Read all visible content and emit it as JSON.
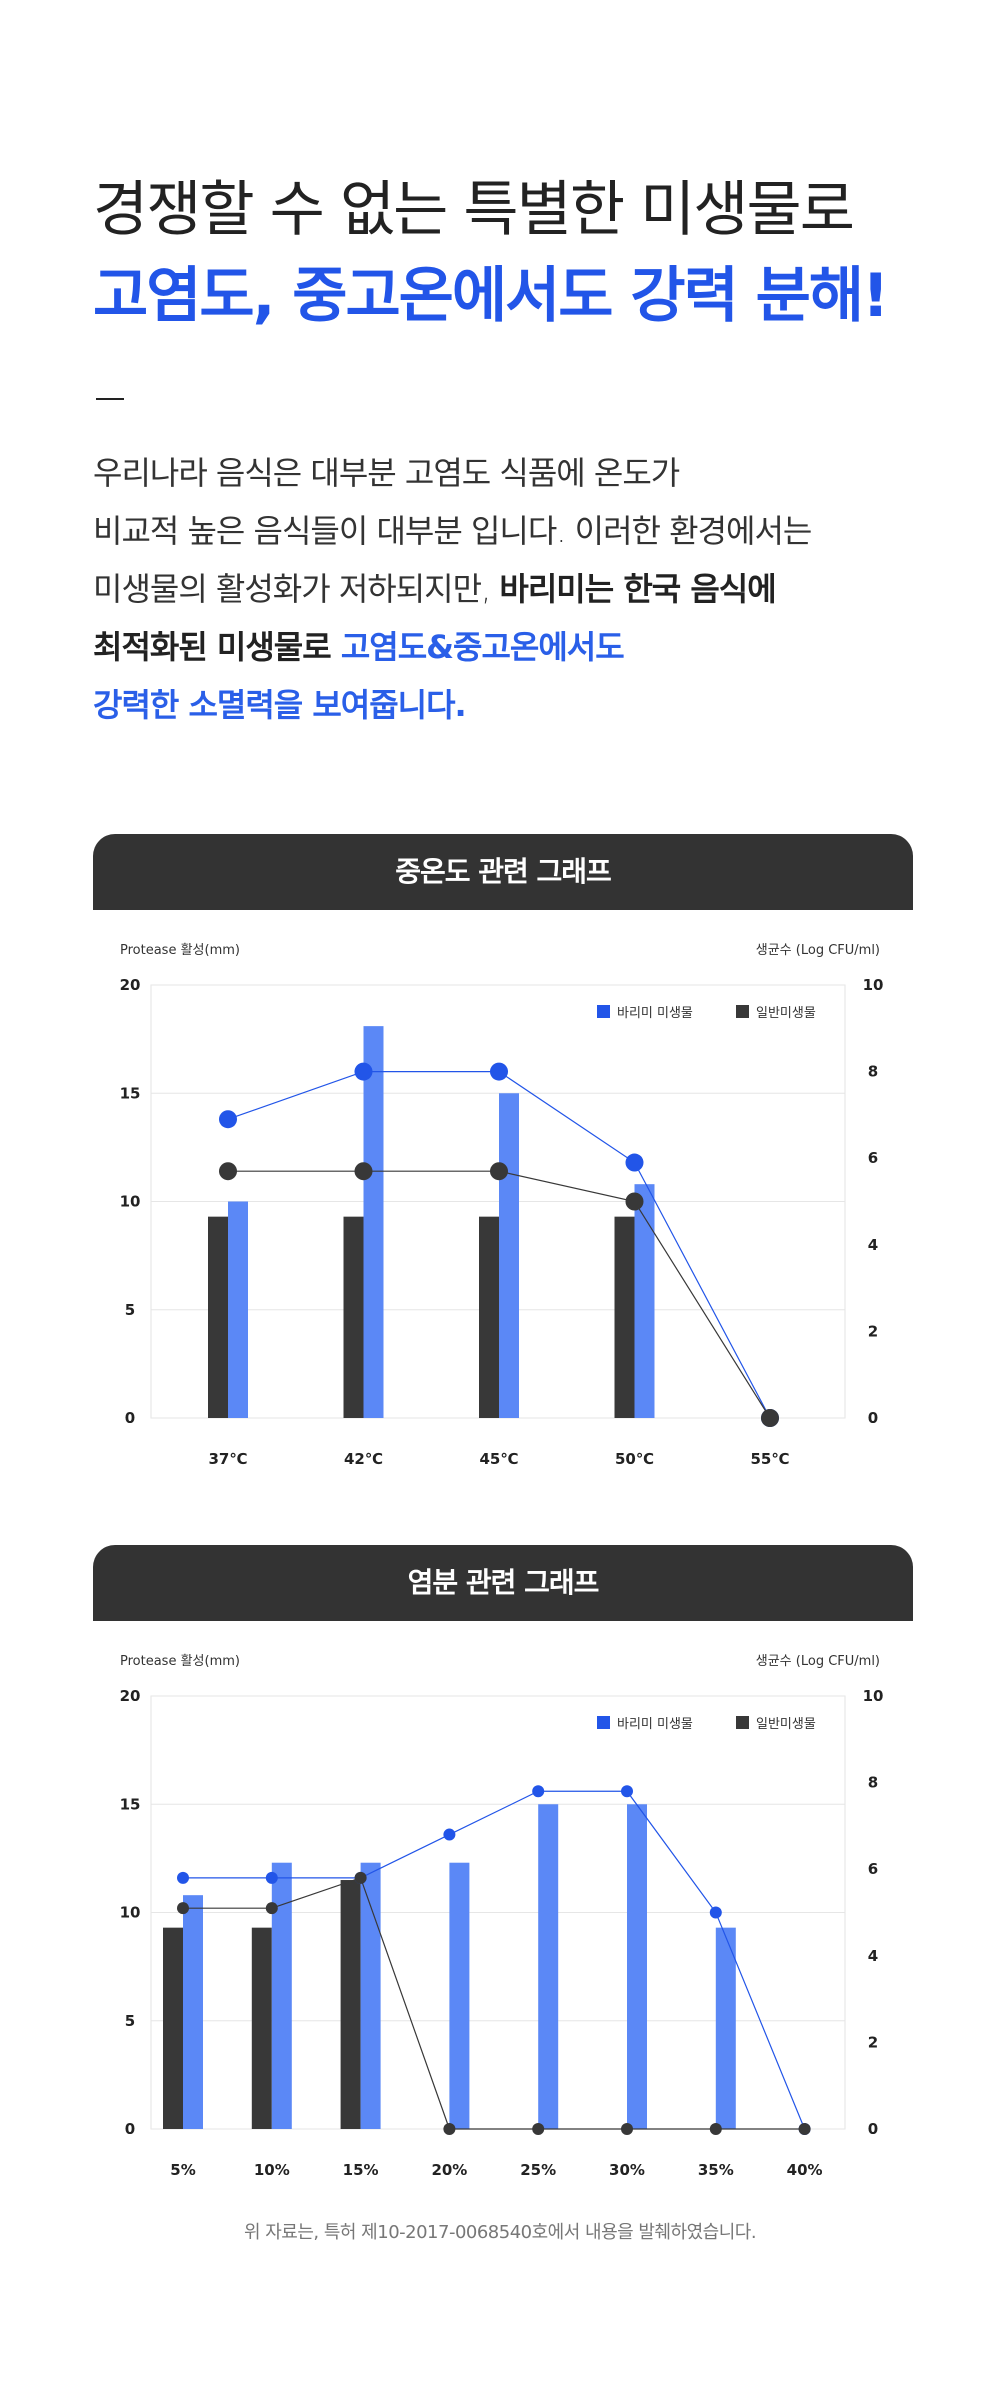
{
  "headline": {
    "line1": "경쟁할 수 없는 특별한 미생물로",
    "line2": "고염도, 중고온에서도 강력 분해!"
  },
  "body": {
    "line1": "우리나라 음식은 대부분 고염도 식품에 온도가",
    "line2": "비교적 높은 음식들이 대부분 입니다. 이러한 환경에서는",
    "line3_plain": "미생물의 활성화가 저하되지만, ",
    "line3_bold": "바리미는 한국 음식에",
    "line4_bold": "최적화된 미생물로 ",
    "line4_blue": "고염도&중고온에서도",
    "line5_blue": "강력한 소멸력을 보여줍니다."
  },
  "colors": {
    "accent_blue": "#2255e8",
    "bar_blue": "#5b88f6",
    "bar_dark": "#383838",
    "header_bg": "#333333"
  },
  "footnote": "위 자료는, 특허 제10-2017-0068540호에서 내용을 발췌하였습니다.",
  "chart_data": [
    {
      "type": "bar",
      "title": "중온도 관련 그래프",
      "ylabel": "Protease 활성(mm)",
      "y2label": "생균수 (Log CFU/ml)",
      "ylim": [
        0,
        20
      ],
      "y2lim": [
        0,
        10
      ],
      "yticks": [
        0,
        5,
        10,
        15,
        20
      ],
      "y2ticks": [
        0,
        2,
        4,
        6,
        8,
        10
      ],
      "grid": true,
      "legend_position": "top-right",
      "legend": [
        "바리미 미생물",
        "일반미생물"
      ],
      "categories": [
        "37℃",
        "42℃",
        "45℃",
        "50℃",
        "55℃"
      ],
      "bars": [
        {
          "name": "일반미생물",
          "values": [
            9.3,
            9.3,
            9.3,
            9.3,
            0
          ]
        },
        {
          "name": "바리미 미생물",
          "values": [
            10,
            18.1,
            15,
            10.8,
            0
          ]
        }
      ],
      "lines": [
        {
          "name": "바리미 미생물",
          "values": [
            6.9,
            8,
            8,
            5.9,
            0
          ]
        },
        {
          "name": "일반미생물",
          "values": [
            5.7,
            5.7,
            5.7,
            5,
            0
          ]
        }
      ]
    },
    {
      "type": "bar",
      "title": "염분 관련 그래프",
      "ylabel": "Protease 활성(mm)",
      "y2label": "생균수 (Log CFU/ml)",
      "ylim": [
        0,
        20
      ],
      "y2lim": [
        0,
        10
      ],
      "yticks": [
        0,
        5,
        10,
        15,
        20
      ],
      "y2ticks": [
        0,
        2,
        4,
        6,
        8,
        10
      ],
      "grid": true,
      "legend_position": "top-right",
      "legend": [
        "바리미 미생물",
        "일반미생물"
      ],
      "categories": [
        "5%",
        "10%",
        "15%",
        "20%",
        "25%",
        "30%",
        "35%",
        "40%"
      ],
      "bars": [
        {
          "name": "일반미생물",
          "values": [
            9.3,
            9.3,
            11.5,
            0,
            0,
            0,
            0,
            0
          ]
        },
        {
          "name": "바리미 미생물",
          "values": [
            10.8,
            12.3,
            12.3,
            12.3,
            15,
            15,
            9.3,
            0
          ]
        }
      ],
      "lines": [
        {
          "name": "바리미 미생물",
          "values": [
            5.8,
            5.8,
            5.8,
            6.8,
            7.8,
            7.8,
            5,
            0
          ]
        },
        {
          "name": "일반미생물",
          "values": [
            5.1,
            5.1,
            5.8,
            0,
            0,
            0,
            0,
            0
          ]
        }
      ]
    }
  ]
}
